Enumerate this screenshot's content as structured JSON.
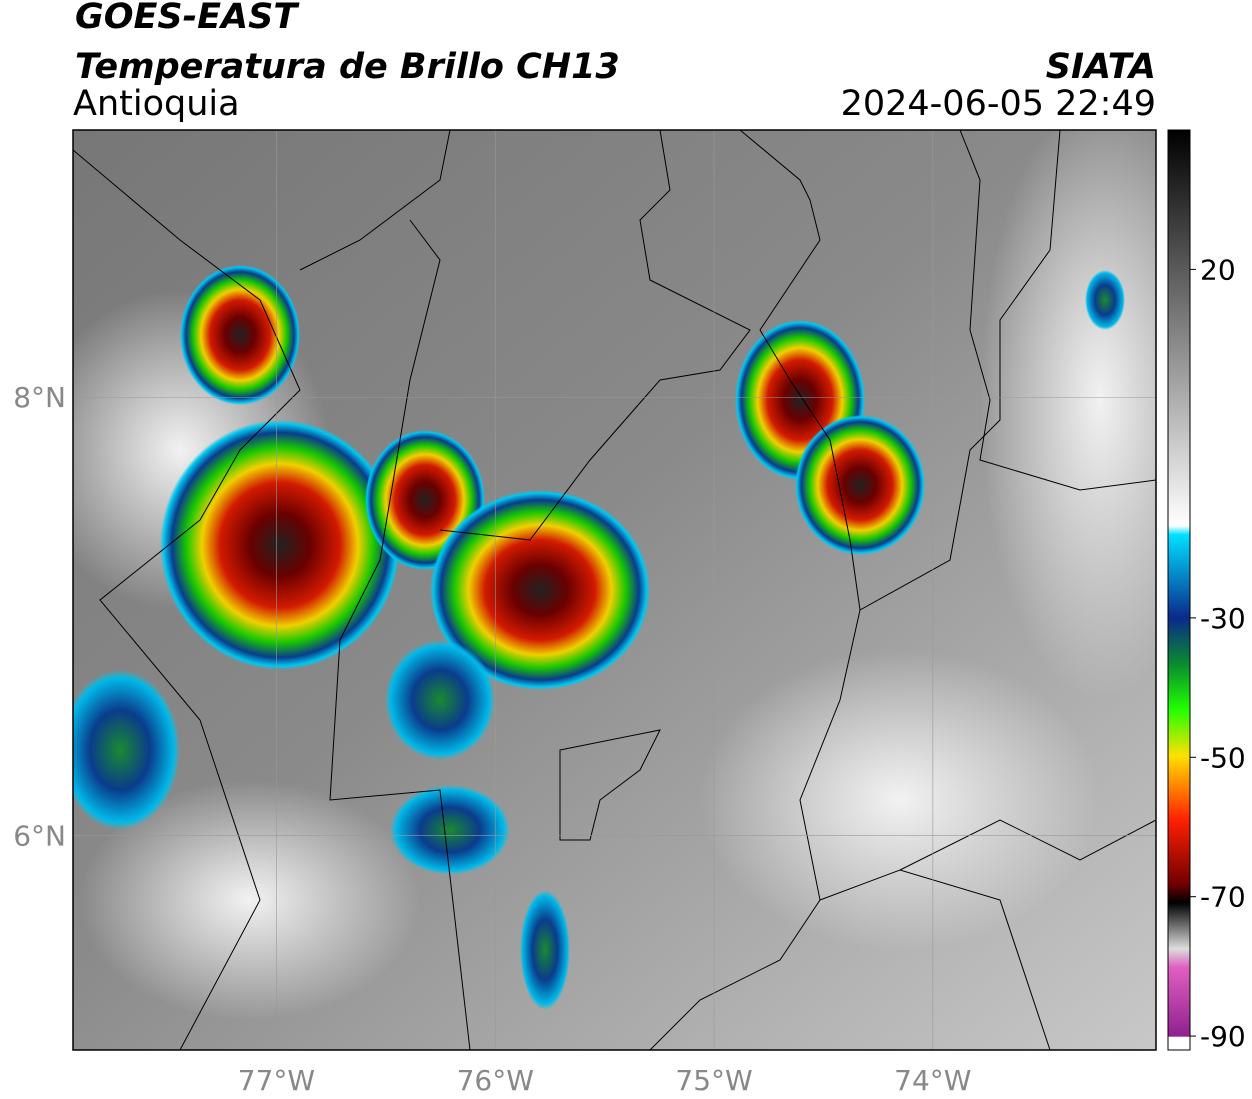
{
  "header": {
    "title": "GOES-EAST",
    "subtitle": "Temperatura de Brillo CH13",
    "region": "Antioquia",
    "source": "SIATA",
    "datetime": "2024-06-05 22:49"
  },
  "map": {
    "lon_range": [
      -77.93,
      -72.98
    ],
    "lat_range": [
      5.02,
      9.22
    ],
    "lon_ticks": [
      {
        "value": -77,
        "label": "77°W"
      },
      {
        "value": -76,
        "label": "76°W"
      },
      {
        "value": -75,
        "label": "75°W"
      },
      {
        "value": -74,
        "label": "74°W"
      }
    ],
    "lat_ticks": [
      {
        "value": 8,
        "label": "8°N"
      },
      {
        "value": 6,
        "label": "6°N"
      }
    ]
  },
  "colorbar": {
    "range": [
      -92,
      40
    ],
    "ticks": [
      20,
      -30,
      -50,
      -70,
      -90
    ]
  }
}
